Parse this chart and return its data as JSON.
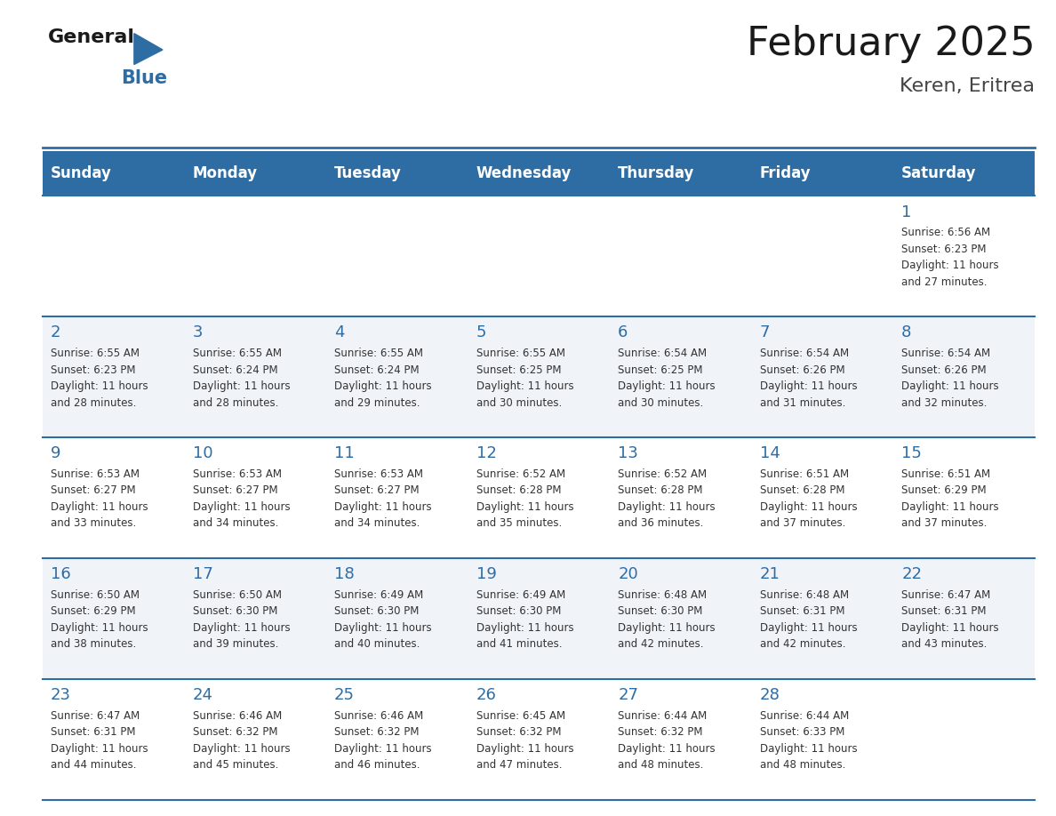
{
  "title": "February 2025",
  "subtitle": "Keren, Eritrea",
  "days_of_week": [
    "Sunday",
    "Monday",
    "Tuesday",
    "Wednesday",
    "Thursday",
    "Friday",
    "Saturday"
  ],
  "header_bg": "#2E6DA4",
  "header_text": "#FFFFFF",
  "odd_row_bg": "#FFFFFF",
  "even_row_bg": "#F0F4F8",
  "grid_line_color": "#2E6DA4",
  "day_number_color": "#2E6DA4",
  "info_text_color": "#333333",
  "title_color": "#1a1a1a",
  "subtitle_color": "#444444",
  "logo_general_color": "#1a1a1a",
  "logo_blue_color": "#2E6DA4",
  "calendar_data": [
    [
      null,
      null,
      null,
      null,
      null,
      null,
      {
        "day": 1,
        "sunrise": "6:56 AM",
        "sunset": "6:23 PM",
        "daylight_hours": 11,
        "daylight_minutes": 27
      }
    ],
    [
      {
        "day": 2,
        "sunrise": "6:55 AM",
        "sunset": "6:23 PM",
        "daylight_hours": 11,
        "daylight_minutes": 28
      },
      {
        "day": 3,
        "sunrise": "6:55 AM",
        "sunset": "6:24 PM",
        "daylight_hours": 11,
        "daylight_minutes": 28
      },
      {
        "day": 4,
        "sunrise": "6:55 AM",
        "sunset": "6:24 PM",
        "daylight_hours": 11,
        "daylight_minutes": 29
      },
      {
        "day": 5,
        "sunrise": "6:55 AM",
        "sunset": "6:25 PM",
        "daylight_hours": 11,
        "daylight_minutes": 30
      },
      {
        "day": 6,
        "sunrise": "6:54 AM",
        "sunset": "6:25 PM",
        "daylight_hours": 11,
        "daylight_minutes": 30
      },
      {
        "day": 7,
        "sunrise": "6:54 AM",
        "sunset": "6:26 PM",
        "daylight_hours": 11,
        "daylight_minutes": 31
      },
      {
        "day": 8,
        "sunrise": "6:54 AM",
        "sunset": "6:26 PM",
        "daylight_hours": 11,
        "daylight_minutes": 32
      }
    ],
    [
      {
        "day": 9,
        "sunrise": "6:53 AM",
        "sunset": "6:27 PM",
        "daylight_hours": 11,
        "daylight_minutes": 33
      },
      {
        "day": 10,
        "sunrise": "6:53 AM",
        "sunset": "6:27 PM",
        "daylight_hours": 11,
        "daylight_minutes": 34
      },
      {
        "day": 11,
        "sunrise": "6:53 AM",
        "sunset": "6:27 PM",
        "daylight_hours": 11,
        "daylight_minutes": 34
      },
      {
        "day": 12,
        "sunrise": "6:52 AM",
        "sunset": "6:28 PM",
        "daylight_hours": 11,
        "daylight_minutes": 35
      },
      {
        "day": 13,
        "sunrise": "6:52 AM",
        "sunset": "6:28 PM",
        "daylight_hours": 11,
        "daylight_minutes": 36
      },
      {
        "day": 14,
        "sunrise": "6:51 AM",
        "sunset": "6:28 PM",
        "daylight_hours": 11,
        "daylight_minutes": 37
      },
      {
        "day": 15,
        "sunrise": "6:51 AM",
        "sunset": "6:29 PM",
        "daylight_hours": 11,
        "daylight_minutes": 37
      }
    ],
    [
      {
        "day": 16,
        "sunrise": "6:50 AM",
        "sunset": "6:29 PM",
        "daylight_hours": 11,
        "daylight_minutes": 38
      },
      {
        "day": 17,
        "sunrise": "6:50 AM",
        "sunset": "6:30 PM",
        "daylight_hours": 11,
        "daylight_minutes": 39
      },
      {
        "day": 18,
        "sunrise": "6:49 AM",
        "sunset": "6:30 PM",
        "daylight_hours": 11,
        "daylight_minutes": 40
      },
      {
        "day": 19,
        "sunrise": "6:49 AM",
        "sunset": "6:30 PM",
        "daylight_hours": 11,
        "daylight_minutes": 41
      },
      {
        "day": 20,
        "sunrise": "6:48 AM",
        "sunset": "6:30 PM",
        "daylight_hours": 11,
        "daylight_minutes": 42
      },
      {
        "day": 21,
        "sunrise": "6:48 AM",
        "sunset": "6:31 PM",
        "daylight_hours": 11,
        "daylight_minutes": 42
      },
      {
        "day": 22,
        "sunrise": "6:47 AM",
        "sunset": "6:31 PM",
        "daylight_hours": 11,
        "daylight_minutes": 43
      }
    ],
    [
      {
        "day": 23,
        "sunrise": "6:47 AM",
        "sunset": "6:31 PM",
        "daylight_hours": 11,
        "daylight_minutes": 44
      },
      {
        "day": 24,
        "sunrise": "6:46 AM",
        "sunset": "6:32 PM",
        "daylight_hours": 11,
        "daylight_minutes": 45
      },
      {
        "day": 25,
        "sunrise": "6:46 AM",
        "sunset": "6:32 PM",
        "daylight_hours": 11,
        "daylight_minutes": 46
      },
      {
        "day": 26,
        "sunrise": "6:45 AM",
        "sunset": "6:32 PM",
        "daylight_hours": 11,
        "daylight_minutes": 47
      },
      {
        "day": 27,
        "sunrise": "6:44 AM",
        "sunset": "6:32 PM",
        "daylight_hours": 11,
        "daylight_minutes": 48
      },
      {
        "day": 28,
        "sunrise": "6:44 AM",
        "sunset": "6:33 PM",
        "daylight_hours": 11,
        "daylight_minutes": 48
      },
      null
    ]
  ]
}
